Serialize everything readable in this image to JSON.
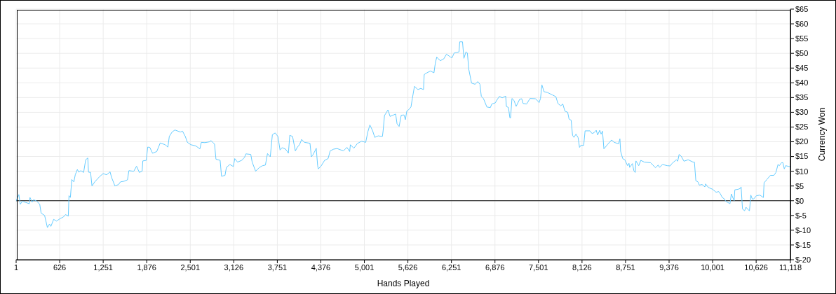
{
  "chart_data": {
    "type": "line",
    "xlabel": "Hands Played",
    "ylabel": "Currency Won",
    "x": [
      1,
      40,
      60,
      90,
      140,
      190,
      200,
      230,
      250,
      290,
      340,
      360,
      410,
      450,
      480,
      500,
      540,
      580,
      630,
      680,
      710,
      750,
      760,
      780,
      800,
      830,
      850,
      880,
      900,
      930,
      970,
      1000,
      1030,
      1040,
      1070,
      1090,
      1130,
      1200,
      1250,
      1300,
      1350,
      1370,
      1420,
      1470,
      1500,
      1550,
      1600,
      1620,
      1690,
      1730,
      1770,
      1810,
      1820,
      1870,
      1890,
      1920,
      1960,
      2020,
      2070,
      2140,
      2180,
      2200,
      2240,
      2280,
      2360,
      2390,
      2430,
      2460,
      2510,
      2580,
      2640,
      2660,
      2710,
      2780,
      2800,
      2850,
      2870,
      2930,
      2950,
      3000,
      3020,
      3070,
      3120,
      3140,
      3180,
      3240,
      3280,
      3300,
      3370,
      3390,
      3440,
      3490,
      3540,
      3580,
      3610,
      3650,
      3680,
      3720,
      3760,
      3790,
      3820,
      3870,
      3910,
      3930,
      3970,
      4010,
      4040,
      4070,
      4100,
      4140,
      4220,
      4240,
      4260,
      4290,
      4310,
      4330,
      4340,
      4380,
      4430,
      4480,
      4510,
      4560,
      4610,
      4700,
      4750,
      4790,
      4800,
      4850,
      4900,
      4960,
      5020,
      5050,
      5080,
      5120,
      5150,
      5200,
      5260,
      5270,
      5290,
      5340,
      5370,
      5420,
      5450,
      5470,
      5500,
      5530,
      5570,
      5590,
      5610,
      5630,
      5670,
      5690,
      5720,
      5770,
      5810,
      5850,
      5860,
      5900,
      5950,
      6000,
      6020,
      6040,
      6090,
      6140,
      6180,
      6240,
      6260,
      6290,
      6360,
      6370,
      6410,
      6430,
      6460,
      6480,
      6500,
      6540,
      6590,
      6630,
      6660,
      6680,
      6710,
      6760,
      6810,
      6830,
      6880,
      6910,
      6940,
      6980,
      7030,
      7040,
      7070,
      7090,
      7100,
      7120,
      7150,
      7180,
      7230,
      7260,
      7280,
      7330,
      7380,
      7460,
      7510,
      7530,
      7550,
      7580,
      7630,
      7700,
      7750,
      7780,
      7820,
      7850,
      7880,
      7920,
      7940,
      7970,
      7990,
      8010,
      8040,
      8070,
      8090,
      8110,
      8150,
      8170,
      8240,
      8270,
      8300,
      8330,
      8350,
      8380,
      8400,
      8420,
      8440,
      8490,
      8550,
      8590,
      8650,
      8670,
      8680,
      8710,
      8740,
      8780,
      8800,
      8810,
      8850,
      8870,
      8890,
      8900,
      8940,
      8970,
      9020,
      9110,
      9180,
      9220,
      9240,
      9280,
      9350,
      9390,
      9420,
      9480,
      9500,
      9520,
      9550,
      9590,
      9650,
      9720,
      9740,
      9760,
      9790,
      9810,
      9850,
      9890,
      9900,
      9940,
      10000,
      10050,
      10090,
      10110,
      10140,
      10170,
      10190,
      10250,
      10270,
      10280,
      10310,
      10320,
      10370,
      10400,
      10410,
      10430,
      10460,
      10480,
      10510,
      10530,
      10550,
      10570,
      10590,
      10630,
      10680,
      10730,
      10740,
      10780,
      10830,
      10880,
      10910,
      10940,
      10960,
      10990,
      11010,
      11030,
      11050,
      11100,
      11118
    ],
    "series": [
      {
        "color": "#66ccff",
        "values": [
          0,
          2.1,
          -1.2,
          -0.2,
          -0.6,
          -1.0,
          1.1,
          -0.5,
          0.3,
          0,
          -1.2,
          -4.2,
          -5.0,
          -9.1,
          -7.9,
          -8.7,
          -6.3,
          -6.9,
          -6.1,
          -5.5,
          -4.7,
          -5.2,
          1.7,
          1.1,
          7.2,
          6.4,
          8.8,
          10.6,
          9.7,
          10.2,
          9.6,
          13.9,
          14.5,
          9.7,
          9.6,
          5.0,
          6.4,
          8.2,
          9.2,
          8.8,
          9.8,
          8.0,
          5.0,
          5.5,
          6.4,
          6.6,
          7.1,
          10.2,
          10.0,
          11.7,
          9.6,
          10.0,
          13.5,
          13.7,
          18.2,
          18.1,
          16.1,
          16.7,
          19.6,
          19.0,
          18.2,
          21.8,
          23.3,
          24.0,
          23.3,
          23.6,
          21.8,
          19.8,
          19.0,
          18.6,
          17.6,
          19.8,
          19.7,
          20.0,
          20.4,
          19.2,
          14.1,
          13.7,
          8.3,
          8.6,
          11.3,
          12.3,
          11.6,
          14.3,
          13.1,
          13.7,
          14.7,
          15.9,
          15.7,
          13.1,
          10.0,
          11.2,
          11.9,
          12.1,
          16.0,
          14.9,
          22.4,
          23.0,
          21.8,
          17.2,
          18.0,
          17.5,
          16.1,
          22.2,
          21.8,
          16.9,
          18.2,
          19.0,
          20.8,
          19.8,
          19.5,
          14.9,
          15.5,
          16.8,
          17.8,
          11.9,
          10.8,
          11.8,
          13.7,
          14.3,
          16.9,
          17.5,
          17.7,
          16.9,
          18.1,
          16.7,
          19.0,
          17.8,
          19.4,
          20.2,
          19.8,
          23.3,
          25.7,
          23.7,
          21.5,
          22.0,
          21.8,
          23.7,
          28.9,
          30.8,
          28.6,
          29.1,
          29.4,
          26.1,
          25.2,
          29.0,
          29.1,
          27.5,
          30.4,
          30.7,
          31.8,
          34.7,
          38.8,
          37.7,
          38.1,
          37.7,
          42.8,
          43.4,
          44.0,
          43.4,
          46.7,
          48.7,
          47.5,
          48.1,
          49.7,
          48.7,
          48.5,
          50.1,
          50.5,
          53.9,
          53.9,
          48.3,
          50.5,
          50.1,
          44.6,
          39.9,
          39.5,
          40.4,
          39.5,
          35.4,
          34.7,
          31.8,
          31.6,
          32.8,
          33.2,
          34.4,
          35.4,
          34.9,
          35.5,
          32.0,
          31.6,
          28.1,
          28.1,
          34.7,
          34.0,
          32.0,
          34.4,
          34.6,
          33.0,
          32.8,
          34.7,
          34.6,
          33.3,
          34.7,
          39.3,
          37.0,
          36.7,
          35.9,
          35.3,
          33.0,
          32.2,
          32.8,
          30.4,
          30.0,
          27.7,
          27.3,
          22.2,
          21.5,
          22.6,
          21.4,
          18.1,
          18.8,
          18.8,
          23.7,
          23.7,
          22.8,
          23.1,
          23.9,
          22.3,
          23.9,
          22.6,
          23.6,
          17.6,
          19.0,
          20.6,
          19.8,
          19.3,
          21.0,
          16.8,
          14.3,
          13.9,
          11.9,
          12.7,
          11.3,
          12.6,
          10.2,
          9.6,
          13.5,
          11.9,
          13.7,
          13.1,
          12.9,
          11.2,
          12.1,
          11.3,
          12.3,
          11.9,
          11.8,
          12.7,
          13.9,
          13.4,
          15.7,
          15.1,
          13.4,
          13.9,
          13.1,
          13.1,
          6.8,
          6.4,
          5.3,
          5.5,
          4.7,
          5.7,
          4.5,
          3.9,
          2.9,
          3.1,
          2.4,
          1.1,
          0.6,
          -0.2,
          -1.0,
          2.3,
          1.7,
          0,
          3.7,
          3.9,
          4.2,
          4.7,
          -2.8,
          -3.4,
          -2.2,
          -3.0,
          -3.4,
          1.9,
          0.6,
          0.6,
          1.7,
          1.9,
          1.1,
          6.1,
          7.2,
          8.6,
          8.6,
          9.6,
          12.3,
          11.9,
          12.9,
          12.9,
          10.8,
          11.9,
          11.6,
          11.6
        ]
      }
    ],
    "xlim": [
      1,
      11118
    ],
    "xticks": [
      1,
      626,
      {
        "value": 1251,
        "label": "1,251"
      },
      {
        "value": 1876,
        "label": "1,876"
      },
      {
        "value": 2501,
        "label": "2,501"
      },
      {
        "value": 3126,
        "label": "3,126"
      },
      {
        "value": 3751,
        "label": "3,751"
      },
      {
        "value": 4376,
        "label": "4,376"
      },
      {
        "value": 5001,
        "label": "5,001"
      },
      {
        "value": 5626,
        "label": "5,626"
      },
      {
        "value": 6251,
        "label": "6,251"
      },
      {
        "value": 6876,
        "label": "6,876"
      },
      {
        "value": 7501,
        "label": "7,501"
      },
      {
        "value": 8126,
        "label": "8,126"
      },
      {
        "value": 8751,
        "label": "8,751"
      },
      {
        "value": 9376,
        "label": "9,376"
      },
      {
        "value": 10001,
        "label": "10,001"
      },
      {
        "value": 10626,
        "label": "10,626"
      },
      {
        "value": 11118,
        "label": "11,118"
      }
    ],
    "ylim": [
      -20,
      65
    ],
    "yticks": [
      {
        "value": -20,
        "label": "$-20"
      },
      {
        "value": -15,
        "label": "$-15"
      },
      {
        "value": -10,
        "label": "$-10"
      },
      {
        "value": -5,
        "label": "$-5"
      },
      {
        "value": 0,
        "label": "$0"
      },
      {
        "value": 5,
        "label": "$5"
      },
      {
        "value": 10,
        "label": "$10"
      },
      {
        "value": 15,
        "label": "$15"
      },
      {
        "value": 20,
        "label": "$20"
      },
      {
        "value": 25,
        "label": "$25"
      },
      {
        "value": 30,
        "label": "$30"
      },
      {
        "value": 35,
        "label": "$35"
      },
      {
        "value": 40,
        "label": "$40"
      },
      {
        "value": 45,
        "label": "$45"
      },
      {
        "value": 50,
        "label": "$50"
      },
      {
        "value": 55,
        "label": "$55"
      },
      {
        "value": 60,
        "label": "$60"
      },
      {
        "value": 65,
        "label": "$65"
      }
    ],
    "grid": true,
    "ref_lines": [
      {
        "axis": "y",
        "value": 0,
        "color": "#000000"
      }
    ]
  }
}
